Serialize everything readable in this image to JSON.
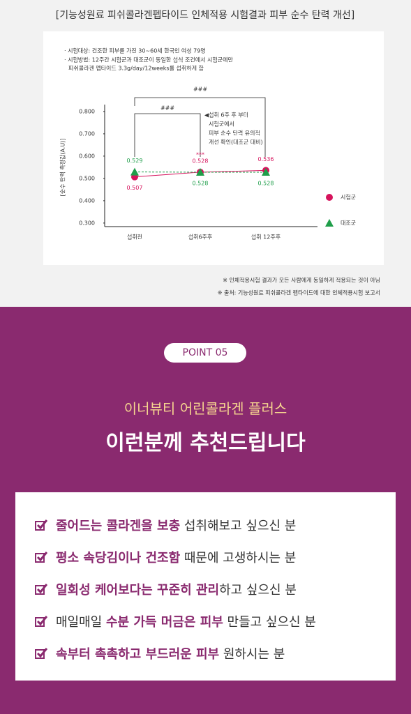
{
  "header": {
    "title": "[기능성원료 피쉬콜라겐펩타이드 인체적용 시험결과 피부 순수 탄력 개선]"
  },
  "chart_data": {
    "type": "line",
    "notes": [
      "· 시험대상: 건조한 피부를 가진 30~60세 한국인 여성 79명",
      "· 시험방법: 12주간 시험군과 대조군이 동일한 섭식 조건에서 시험군에만",
      "피쉬콜라겐 펩타이드 3.3g/day/12weeks를 섭취하게 함"
    ],
    "y_label": "[순수 탄력 측정값(A.U)]",
    "categories": [
      "섭취전",
      "섭취6주후",
      "섭취 12주후"
    ],
    "series": [
      {
        "name": "시험군",
        "color": "#d6135c",
        "marker": "circle",
        "line": "solid",
        "values": [
          0.507,
          0.528,
          0.536
        ]
      },
      {
        "name": "대조군",
        "color": "#1f9e4a",
        "marker": "triangle",
        "line": "dashed",
        "values": [
          0.529,
          0.528,
          0.528
        ]
      }
    ],
    "ylim": [
      0.284,
      0.831
    ],
    "yticks": [
      {
        "value": 0.3,
        "label": "0.300"
      },
      {
        "value": 0.4,
        "label": "0.400"
      },
      {
        "value": 0.5,
        "label": "0.500"
      },
      {
        "value": 0.6,
        "label": "0.600"
      },
      {
        "value": 0.7,
        "label": "0.700"
      },
      {
        "value": 0.8,
        "label": "0.800"
      }
    ],
    "annotations": {
      "outer_bracket": "###",
      "inner_bracket": "###",
      "significance": "***",
      "callout": [
        "◀섭취 6주 후 부터",
        "시험군에서",
        "피부 순수 탄력 유의적",
        "개선 확인(대조군 대비)"
      ]
    },
    "legend": "right"
  },
  "footnotes": [
    "※ 인체적용시험 결과가 모든 사람에게 동일하게 적용되는 것이 아님",
    "※ 출처: 기능성원료 피쉬콜라겐 펩타이드에 대한 인체적용시험 보고서"
  ],
  "point": {
    "badge": "POINT 05",
    "subtitle": "이너뷰티 어린콜라겐 플러스",
    "title": "이런분께 추천드립니다"
  },
  "checklist": [
    [
      {
        "text": "줄어드는 콜라겐을 보충",
        "emphasis": true
      },
      {
        "text": " 섭취해보고 싶으신 분",
        "emphasis": false
      }
    ],
    [
      {
        "text": "평소 속당김이나 건조함",
        "emphasis": true
      },
      {
        "text": " 때문에 고생하시는 분",
        "emphasis": false
      }
    ],
    [
      {
        "text": "일회성 케어보다는 꾸준히 관리",
        "emphasis": true
      },
      {
        "text": "하고 싶으신 분",
        "emphasis": false
      }
    ],
    [
      {
        "text": "매일매일 ",
        "emphasis": false
      },
      {
        "text": "수분 가득 머금은 피부",
        "emphasis": true
      },
      {
        "text": " 만들고 싶으신 분",
        "emphasis": false
      }
    ],
    [
      {
        "text": "속부터 촉촉하고 부드러운 피부",
        "emphasis": true
      },
      {
        "text": " 원하시는 분",
        "emphasis": false
      }
    ]
  ]
}
